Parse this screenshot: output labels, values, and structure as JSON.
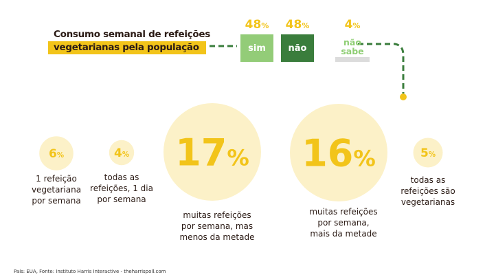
{
  "title": {
    "line1": "Consumo semanal de refeições",
    "line2": "vegetarianas pela população"
  },
  "answers": [
    {
      "label": "sim",
      "percent": "48",
      "value": 48,
      "color": "#93cc78"
    },
    {
      "label": "não",
      "percent": "48",
      "value": 48,
      "color": "#3a7d3c"
    },
    {
      "label": "não sabe",
      "percent": "4",
      "value": 4,
      "color": "#dcdcdc"
    }
  ],
  "percent_sign": "%",
  "colors": {
    "accent": "#f2c41a",
    "circle": "#fcf1c8",
    "dash": "#3a7d3c"
  },
  "chart_data": {
    "type": "bubble",
    "title": "Consumo semanal de refeições vegetarianas pela população",
    "categories": [
      "1 refeição vegetariana por semana",
      "todas as refeições, 1 dia por semana",
      "muitas refeições por semana, mas menos da metade",
      "muitas refeições por semana, mais da metade",
      "todas as refeições são vegetarianas"
    ],
    "values": [
      6,
      4,
      17,
      16,
      5
    ],
    "labels": [
      "6",
      "4",
      "17",
      "16",
      "5"
    ],
    "desc_lines": [
      [
        "1 refeição",
        "vegetariana",
        "por semana"
      ],
      [
        "todas as",
        "refeições, 1 dia",
        "por semana"
      ],
      [
        "muitas refeições",
        "por semana, mas",
        "menos da metade"
      ],
      [
        "muitas refeições",
        "por semana,",
        "mais da metade"
      ],
      [
        "todas as",
        "refeições são",
        "vegetarianas"
      ]
    ]
  },
  "footer": "País: EUA, Fonte: Instituto Harris Interactive - theharrispoll.com"
}
